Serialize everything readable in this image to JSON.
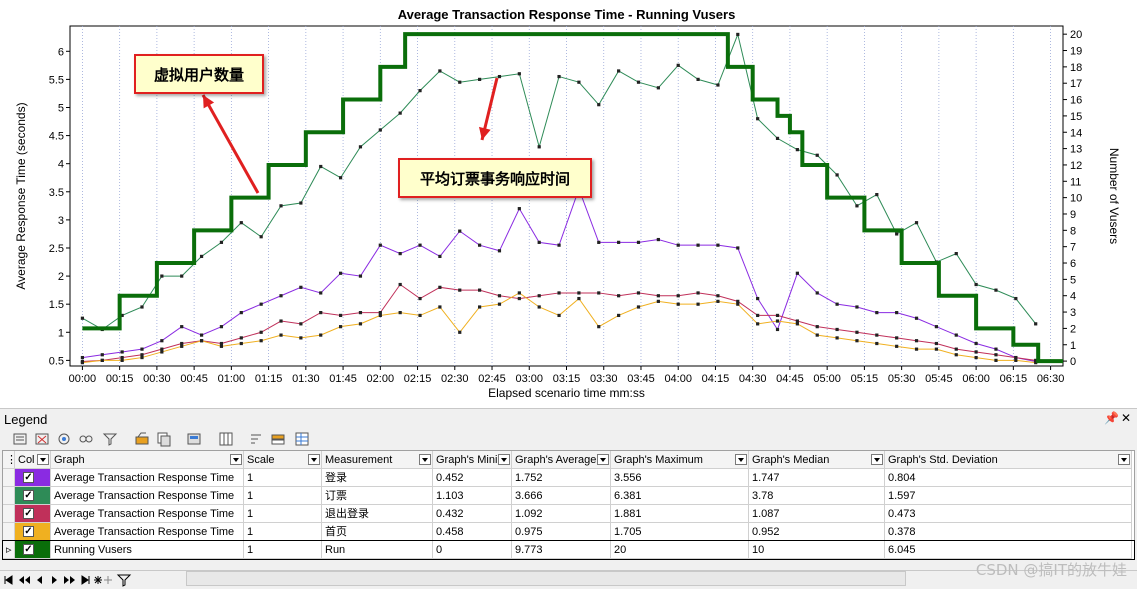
{
  "chart_data": {
    "type": "line",
    "title": "Average Transaction Response Time - Running Vusers",
    "xlabel": "Elapsed scenario time mm:ss",
    "ylabel": "Average Response Time (seconds)",
    "y2label": "Number of Vusers",
    "x_ticks": [
      "00:00",
      "00:15",
      "00:30",
      "00:45",
      "01:00",
      "01:15",
      "01:30",
      "01:45",
      "02:00",
      "02:15",
      "02:30",
      "02:45",
      "03:00",
      "03:15",
      "03:30",
      "03:45",
      "04:00",
      "04:15",
      "04:30",
      "04:45",
      "05:00",
      "05:15",
      "05:30",
      "05:45",
      "06:00",
      "06:15",
      "06:30"
    ],
    "y_ticks": [
      "0.5",
      "1",
      "1.5",
      "2",
      "2.5",
      "3",
      "3.5",
      "4",
      "4.5",
      "5",
      "5.5",
      "6"
    ],
    "y2_ticks": [
      "0",
      "1",
      "2",
      "3",
      "4",
      "5",
      "6",
      "7",
      "8",
      "9",
      "10",
      "11",
      "12",
      "13",
      "14",
      "15",
      "16",
      "17",
      "18",
      "19",
      "20"
    ],
    "xlim_seconds": [
      -5,
      395
    ],
    "ylim": [
      0.4,
      6.45
    ],
    "y2lim": [
      -0.3,
      20.5
    ],
    "grid": true,
    "series": [
      {
        "name": "Average Transaction Response Time 订票",
        "color": "#2e8b57",
        "axis": "left",
        "x": [
          0,
          8,
          16,
          24,
          32,
          40,
          48,
          56,
          64,
          72,
          80,
          88,
          96,
          104,
          112,
          120,
          128,
          136,
          144,
          152,
          160,
          168,
          176,
          184,
          192,
          200,
          208,
          216,
          224,
          232,
          240,
          248,
          256,
          264,
          272,
          280,
          288,
          296,
          304,
          312,
          320,
          328,
          336,
          344,
          352,
          360,
          368,
          376,
          384
        ],
        "values": [
          1.25,
          1.05,
          1.3,
          1.45,
          2.0,
          2.0,
          2.35,
          2.6,
          2.95,
          2.7,
          3.25,
          3.3,
          3.95,
          3.75,
          4.3,
          4.6,
          4.9,
          5.3,
          5.65,
          5.45,
          5.5,
          5.55,
          5.6,
          4.3,
          5.55,
          5.45,
          5.05,
          5.65,
          5.45,
          5.35,
          5.75,
          5.5,
          5.4,
          6.3,
          4.8,
          4.45,
          4.25,
          4.15,
          3.8,
          3.25,
          3.45,
          2.75,
          2.95,
          2.25,
          2.4,
          1.85,
          1.75,
          1.6,
          1.15
        ]
      },
      {
        "name": "Average Transaction Response Time 登录",
        "color": "#8a2be2",
        "axis": "left",
        "x": [
          0,
          8,
          16,
          24,
          32,
          40,
          48,
          56,
          64,
          72,
          80,
          88,
          96,
          104,
          112,
          120,
          128,
          136,
          144,
          152,
          160,
          168,
          176,
          184,
          192,
          200,
          208,
          216,
          224,
          232,
          240,
          248,
          256,
          264,
          272,
          280,
          288,
          296,
          304,
          312,
          320,
          328,
          336,
          344,
          352,
          360,
          368,
          376,
          384
        ],
        "values": [
          0.55,
          0.6,
          0.65,
          0.7,
          0.85,
          1.1,
          0.95,
          1.1,
          1.35,
          1.5,
          1.65,
          1.8,
          1.7,
          2.05,
          2.0,
          2.55,
          2.4,
          2.55,
          2.35,
          2.8,
          2.55,
          2.45,
          3.2,
          2.6,
          2.55,
          3.55,
          2.6,
          2.6,
          2.6,
          2.65,
          2.55,
          2.55,
          2.55,
          2.5,
          1.6,
          1.05,
          2.05,
          1.7,
          1.5,
          1.45,
          1.35,
          1.35,
          1.25,
          1.1,
          0.95,
          0.8,
          0.7,
          0.55,
          0.48
        ]
      },
      {
        "name": "Average Transaction Response Time 退出登录",
        "color": "#c0305a",
        "axis": "left",
        "x": [
          0,
          8,
          16,
          24,
          32,
          40,
          48,
          56,
          64,
          72,
          80,
          88,
          96,
          104,
          112,
          120,
          128,
          136,
          144,
          152,
          160,
          168,
          176,
          184,
          192,
          200,
          208,
          216,
          224,
          232,
          240,
          248,
          256,
          264,
          272,
          280,
          288,
          296,
          304,
          312,
          320,
          328,
          336,
          344,
          352,
          360,
          368,
          376,
          384
        ],
        "values": [
          0.48,
          0.5,
          0.55,
          0.6,
          0.7,
          0.8,
          0.85,
          0.8,
          0.9,
          1.0,
          1.2,
          1.15,
          1.35,
          1.3,
          1.35,
          1.35,
          1.85,
          1.6,
          1.8,
          1.75,
          1.75,
          1.65,
          1.6,
          1.65,
          1.7,
          1.7,
          1.7,
          1.65,
          1.7,
          1.65,
          1.65,
          1.7,
          1.65,
          1.55,
          1.3,
          1.3,
          1.2,
          1.1,
          1.05,
          1.0,
          0.95,
          0.9,
          0.85,
          0.8,
          0.7,
          0.65,
          0.6,
          0.55,
          0.5
        ]
      },
      {
        "name": "Average Transaction Response Time 首页",
        "color": "#f0b020",
        "axis": "left",
        "x": [
          0,
          8,
          16,
          24,
          32,
          40,
          48,
          56,
          64,
          72,
          80,
          88,
          96,
          104,
          112,
          120,
          128,
          136,
          144,
          152,
          160,
          168,
          176,
          184,
          192,
          200,
          208,
          216,
          224,
          232,
          240,
          248,
          256,
          264,
          272,
          280,
          288,
          296,
          304,
          312,
          320,
          328,
          336,
          344,
          352,
          360,
          368,
          376,
          384
        ],
        "values": [
          0.46,
          0.5,
          0.5,
          0.55,
          0.65,
          0.75,
          0.85,
          0.75,
          0.8,
          0.85,
          0.95,
          0.9,
          0.95,
          1.1,
          1.15,
          1.3,
          1.35,
          1.3,
          1.45,
          1.0,
          1.45,
          1.5,
          1.7,
          1.45,
          1.3,
          1.6,
          1.1,
          1.3,
          1.45,
          1.55,
          1.5,
          1.5,
          1.55,
          1.5,
          1.15,
          1.2,
          1.15,
          0.95,
          0.9,
          0.85,
          0.8,
          0.75,
          0.7,
          0.7,
          0.6,
          0.55,
          0.5,
          0.5,
          0.46
        ]
      },
      {
        "name": "Running Vusers",
        "color": "#0a6e0a",
        "axis": "right",
        "x": [
          0,
          15,
          30,
          45,
          60,
          75,
          90,
          105,
          120,
          130,
          260,
          270,
          280,
          285,
          290,
          300,
          315,
          330,
          345,
          360,
          375,
          385,
          395
        ],
        "values": [
          2,
          4,
          6,
          8,
          10,
          12,
          14,
          16,
          18,
          20,
          18,
          16,
          15,
          14,
          12,
          10,
          8,
          6,
          4,
          2,
          1,
          0,
          0
        ]
      }
    ],
    "annotations": [
      "虚拟用户数量",
      "平均订票事务响应时间"
    ]
  },
  "legend": {
    "title": "Legend",
    "columns": [
      "Col",
      "Graph",
      "Scale",
      "Measurement",
      "Graph's Mini",
      "Graph's Average",
      "Graph's Maximum",
      "Graph's Median",
      "Graph's Std. Deviation"
    ],
    "rows": [
      {
        "color": "#8a2be2",
        "graph": "Average Transaction Response Time",
        "scale": "1",
        "measurement": "登录",
        "min": "0.452",
        "avg": "1.752",
        "max": "3.556",
        "median": "1.747",
        "std": "0.804"
      },
      {
        "color": "#2e8b57",
        "graph": "Average Transaction Response Time",
        "scale": "1",
        "measurement": "订票",
        "min": "1.103",
        "avg": "3.666",
        "max": "6.381",
        "median": "3.78",
        "std": "1.597"
      },
      {
        "color": "#c0305a",
        "graph": "Average Transaction Response Time",
        "scale": "1",
        "measurement": "退出登录",
        "min": "0.432",
        "avg": "1.092",
        "max": "1.881",
        "median": "1.087",
        "std": "0.473"
      },
      {
        "color": "#f0b020",
        "graph": "Average Transaction Response Time",
        "scale": "1",
        "measurement": "首页",
        "min": "0.458",
        "avg": "0.975",
        "max": "1.705",
        "median": "0.952",
        "std": "0.378"
      },
      {
        "color": "#0a6e0a",
        "graph": "Running Vusers",
        "scale": "1",
        "measurement": "Run",
        "min": "0",
        "avg": "9.773",
        "max": "20",
        "median": "10",
        "std": "6.045"
      }
    ]
  },
  "watermark": "CSDN @搞IT的放牛娃"
}
